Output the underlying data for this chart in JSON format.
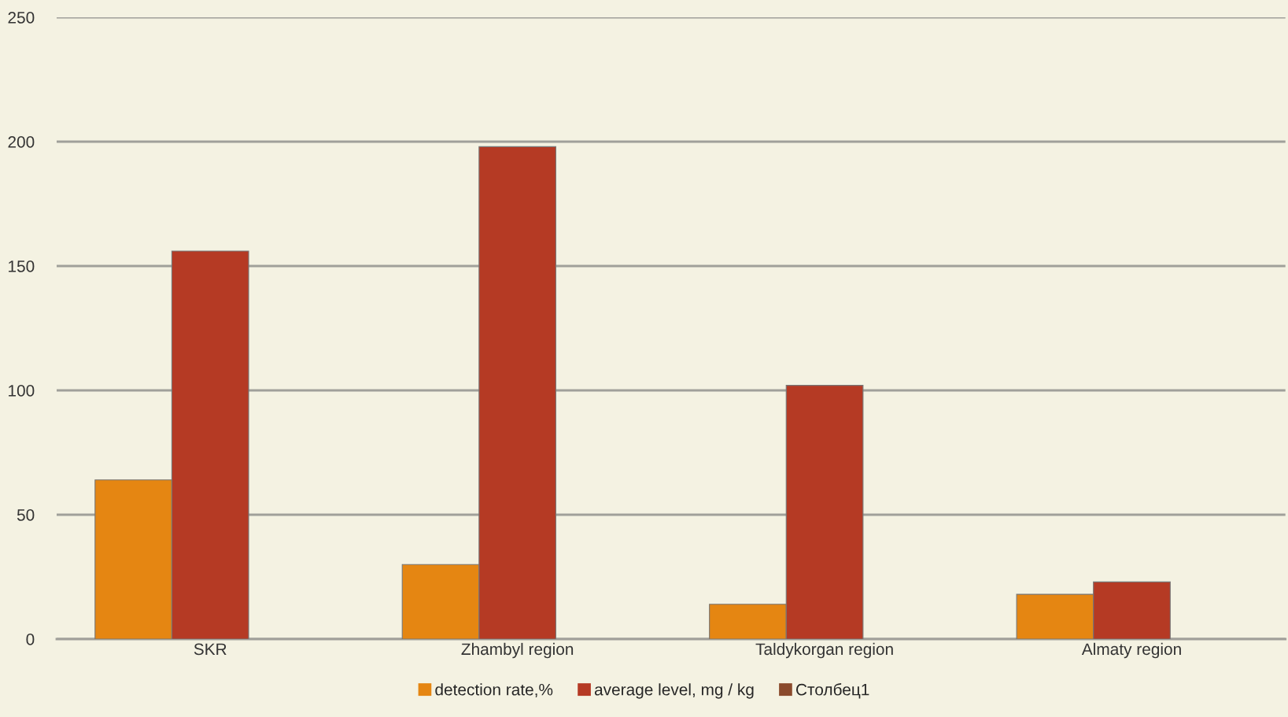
{
  "chart_data": {
    "type": "bar",
    "categories": [
      "SKR",
      "Zhambyl region",
      "Taldykorgan region",
      "Almaty region"
    ],
    "series": [
      {
        "name": "detection rate,%",
        "color": "#e58612",
        "values": [
          64,
          30,
          14,
          18
        ]
      },
      {
        "name": "average level, mg / kg",
        "color": "#b53a24",
        "values": [
          156,
          198,
          102,
          23
        ]
      },
      {
        "name": "Столбец1",
        "color": "#8a4a2c",
        "values": [
          null,
          null,
          null,
          null
        ]
      }
    ],
    "ylim": [
      0,
      250
    ],
    "yticks": [
      0,
      50,
      100,
      150,
      200,
      250
    ],
    "grid": "y",
    "legend": "bottom"
  }
}
